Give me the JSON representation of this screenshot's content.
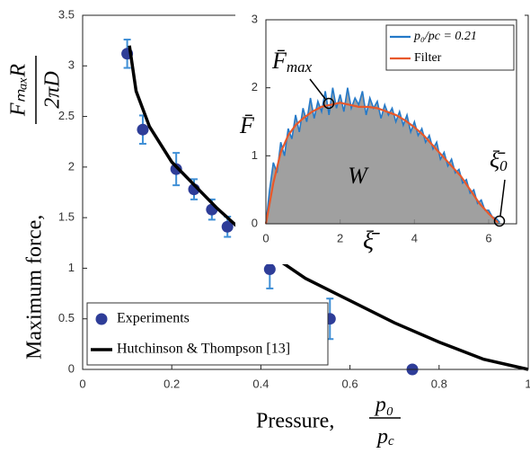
{
  "chart_data": [
    {
      "type": "scatter",
      "x_label": "Pressure,",
      "x_label_numerator": "p₀",
      "x_label_denominator": "p",
      "x_label_denominator_sub": "c",
      "y_label": "Maximum force,",
      "y_label_numerator": "FₘₐₓR",
      "y_label_denominator": "2πD",
      "xlim": [
        0,
        1
      ],
      "ylim": [
        0,
        3.5
      ],
      "xticks": [
        0,
        0.2,
        0.4,
        0.6,
        0.8,
        1
      ],
      "yticks": [
        0,
        0.5,
        1,
        1.5,
        2,
        2.5,
        3,
        3.5
      ],
      "legend": "lower left",
      "series": [
        {
          "name": "Experiments",
          "color": "#2e3d98",
          "x": [
            0.1,
            0.135,
            0.21,
            0.25,
            0.29,
            0.325,
            0.42,
            0.555,
            0.74
          ],
          "values": [
            3.12,
            2.37,
            1.98,
            1.78,
            1.58,
            1.41,
            0.99,
            0.5,
            0
          ],
          "errors": [
            0.14,
            0.14,
            0.16,
            0.1,
            0.1,
            0.1,
            0.19,
            0.2,
            0
          ]
        },
        {
          "name": "Hutchinson & Thompson [13]",
          "color": "#000000",
          "type": "line",
          "x": [
            0.105,
            0.12,
            0.15,
            0.2,
            0.3,
            0.4,
            0.5,
            0.6,
            0.7,
            0.8,
            0.9,
            1
          ],
          "values": [
            3.2,
            2.75,
            2.4,
            2.05,
            1.6,
            1.2,
            0.9,
            0.68,
            0.46,
            0.27,
            0.1,
            0
          ]
        }
      ]
    },
    {
      "type": "line",
      "x_label": "ξ̄",
      "y_label": "F̄",
      "xlim": [
        0,
        6.75
      ],
      "ylim": [
        0,
        3
      ],
      "xticks": [
        0,
        2,
        4,
        6
      ],
      "yticks": [
        0,
        1,
        2,
        3
      ],
      "legend": "upper right",
      "fill": "#8f8f8f",
      "annotations": {
        "fmax": "F̄",
        "fmax_sub": "max",
        "xi0": "ξ̄",
        "xi0_sub": "0",
        "area": "W"
      },
      "series": [
        {
          "name": "p₀/pc = 0.21",
          "color": "#2479c8",
          "x": [
            0,
            0.1,
            0.2,
            0.3,
            0.4,
            0.5,
            0.6,
            0.7,
            0.8,
            0.9,
            1,
            1.1,
            1.2,
            1.3,
            1.4,
            1.5,
            1.6,
            1.7,
            1.8,
            1.9,
            2,
            2.1,
            2.2,
            2.3,
            2.4,
            2.5,
            2.6,
            2.7,
            2.8,
            2.9,
            3,
            3.1,
            3.2,
            3.3,
            3.4,
            3.5,
            3.6,
            3.7,
            3.8,
            3.9,
            4,
            4.1,
            4.2,
            4.3,
            4.4,
            4.5,
            4.6,
            4.7,
            4.8,
            4.9,
            5,
            5.1,
            5.2,
            5.3,
            5.4,
            5.5,
            5.6,
            5.7,
            5.8,
            5.9,
            6,
            6.1,
            6.2,
            6.3
          ],
          "values": [
            0,
            0.5,
            0.9,
            0.75,
            1.2,
            1.0,
            1.4,
            1.25,
            1.6,
            1.35,
            1.7,
            1.5,
            1.85,
            1.55,
            1.8,
            1.65,
            1.95,
            1.6,
            2.0,
            1.7,
            1.9,
            1.65,
            2.0,
            1.7,
            1.85,
            1.75,
            1.95,
            1.6,
            1.85,
            1.7,
            1.8,
            1.55,
            1.75,
            1.6,
            1.7,
            1.5,
            1.65,
            1.45,
            1.6,
            1.35,
            1.5,
            1.3,
            1.4,
            1.2,
            1.3,
            1.1,
            1.2,
            0.95,
            1.05,
            0.85,
            0.95,
            0.75,
            0.8,
            0.6,
            0.65,
            0.45,
            0.5,
            0.3,
            0.35,
            0.2,
            0.2,
            0.1,
            0.08,
            0.02
          ]
        },
        {
          "name": "Filter",
          "color": "#e8582a",
          "x": [
            0,
            0.2,
            0.4,
            0.6,
            0.8,
            1,
            1.25,
            1.5,
            1.75,
            2,
            2.25,
            2.5,
            2.75,
            3,
            3.25,
            3.5,
            3.75,
            4,
            4.25,
            4.5,
            4.75,
            5,
            5.25,
            5.5,
            5.75,
            6,
            6.25
          ],
          "values": [
            0,
            0.6,
            1.05,
            1.3,
            1.45,
            1.55,
            1.65,
            1.72,
            1.75,
            1.78,
            1.75,
            1.72,
            1.72,
            1.7,
            1.65,
            1.6,
            1.52,
            1.42,
            1.3,
            1.15,
            1.0,
            0.85,
            0.7,
            0.5,
            0.3,
            0.15,
            0.02
          ]
        }
      ]
    }
  ]
}
